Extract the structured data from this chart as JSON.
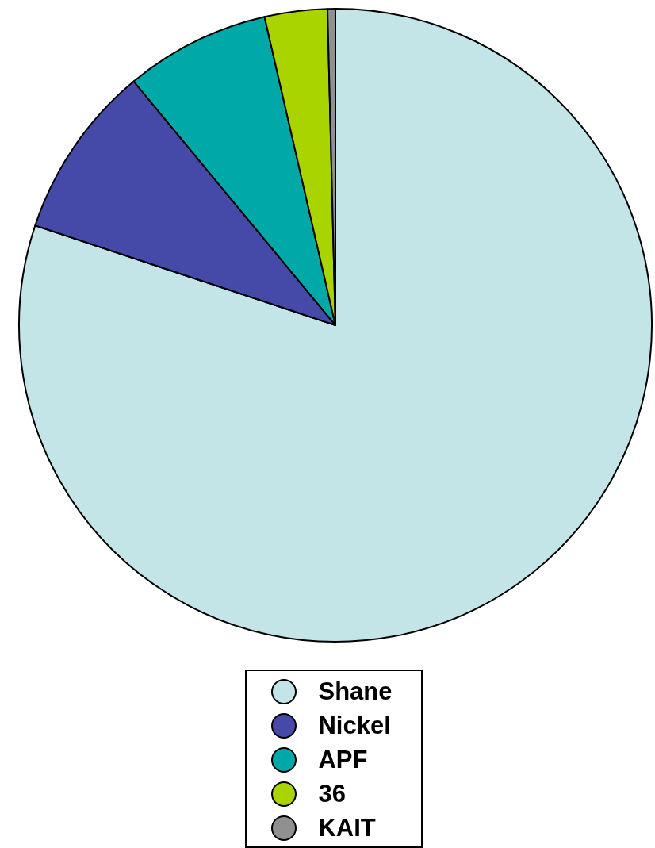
{
  "chart_data": {
    "type": "pie",
    "categories": [
      "Shane",
      "Nickel",
      "APF",
      "36",
      "KAIT"
    ],
    "values": [
      80.1,
      8.9,
      7.4,
      3.2,
      0.4
    ],
    "colors": [
      "#c4e5e8",
      "#4549a8",
      "#00a8a8",
      "#aad400",
      "#909090"
    ],
    "legend": "bottom"
  }
}
